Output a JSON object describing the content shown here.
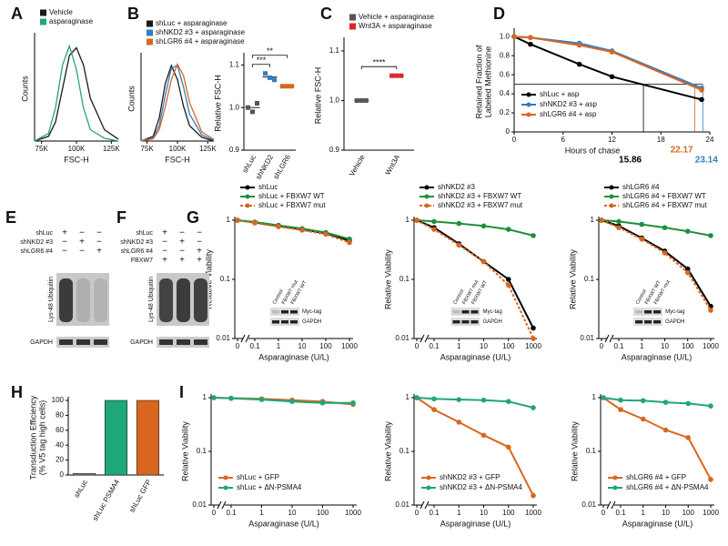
{
  "chart_data": [
    {
      "panel": "A",
      "type": "line",
      "xlabel": "FSC-H",
      "ylabel": "Counts",
      "legend": "above",
      "markers": false,
      "x": [
        70000,
        80000,
        85000,
        90000,
        95000,
        100000,
        105000,
        110000,
        120000,
        130000
      ],
      "xlim": [
        70000,
        130000
      ],
      "xticks": [
        {
          "value": 75000,
          "label": "75K"
        },
        {
          "value": 100000,
          "label": "100K"
        },
        {
          "value": 125000,
          "label": "125K"
        }
      ],
      "ylim": [
        0,
        110
      ],
      "series": [
        {
          "name": "Vehicle",
          "color": "#1a1a1a",
          "values": [
            0,
            5,
            20,
            55,
            90,
            98,
            80,
            45,
            12,
            2
          ]
        },
        {
          "name": "asparaginase",
          "color": "#1fa67a",
          "values": [
            0,
            8,
            35,
            80,
            100,
            75,
            35,
            12,
            3,
            0
          ]
        }
      ]
    },
    {
      "panel": "B",
      "type": "line",
      "xlabel": "FSC-H",
      "ylabel": "Counts",
      "legend": "above",
      "markers": false,
      "x": [
        70000,
        80000,
        85000,
        90000,
        95000,
        100000,
        105000,
        110000,
        120000,
        130000
      ],
      "xlim": [
        70000,
        130000
      ],
      "xticks": [
        {
          "value": 75000,
          "label": "75K"
        },
        {
          "value": 100000,
          "label": "100K"
        },
        {
          "value": 125000,
          "label": "125K"
        }
      ],
      "ylim": [
        0,
        110
      ],
      "series": [
        {
          "name": "shLuc + asparaginase",
          "color": "#1a1a1a",
          "values": [
            0,
            6,
            30,
            75,
            98,
            80,
            45,
            20,
            5,
            0
          ]
        },
        {
          "name": "shNKD2 #3 + asparaginase",
          "color": "#2f7fc1",
          "values": [
            0,
            4,
            20,
            60,
            95,
            98,
            70,
            35,
            8,
            1
          ]
        },
        {
          "name": "shLGR6 #4 + asparaginase",
          "color": "#d9661f",
          "values": [
            0,
            3,
            15,
            45,
            80,
            100,
            85,
            50,
            12,
            2
          ]
        }
      ]
    },
    {
      "type": "dot",
      "ylabel": "Relative FSC-H",
      "categories": [
        "shLuc",
        "shNKD2",
        "shLGR6"
      ],
      "colors": [
        "#555555",
        "#2f7fc1",
        "#d9661f"
      ],
      "values": [
        [
          1.0,
          0.99,
          1.01
        ],
        [
          1.08,
          1.07,
          1.065
        ],
        [
          1.05,
          1.05,
          1.05
        ]
      ],
      "ylim": [
        0.9,
        1.12
      ],
      "yticks": [
        0.9,
        {
          "value": 1,
          "label": "1.0"
        },
        1.1
      ],
      "significance": [
        {
          "pair": [
            0,
            1
          ],
          "label": "***"
        },
        {
          "pair": [
            0,
            2
          ],
          "label": "**"
        }
      ]
    },
    {
      "panel": "C",
      "type": "dot",
      "ylabel": "Relative FSC-H",
      "legend": "above",
      "categories": [
        "Vehicle",
        "Wnt3A"
      ],
      "colors": [
        "#555555",
        "#e0262b"
      ],
      "names": [
        "Vehicle + asparaginase",
        "Wnt3A + asparaginase"
      ],
      "values": [
        [
          1.0,
          1.0,
          1.0
        ],
        [
          1.05,
          1.05,
          1.05
        ]
      ],
      "ylim": [
        0.9,
        1.12
      ],
      "yticks": [
        0.9,
        {
          "value": 1,
          "label": "1.0"
        },
        1.1
      ],
      "significance": [
        {
          "pair": [
            0,
            1
          ],
          "label": "****"
        }
      ]
    },
    {
      "panel": "D",
      "type": "line",
      "xlabel": "Hours of chase",
      "ylabel": [
        "Retained Fraction of",
        "Labeled Methionine"
      ],
      "legend": "lower left",
      "markers": true,
      "x": [
        0,
        2,
        8,
        12,
        23
      ],
      "xlim": [
        0,
        24
      ],
      "xticks": [
        0,
        6,
        12,
        18,
        24
      ],
      "ylim": [
        0,
        1.05
      ],
      "yticks": [
        0,
        0.2,
        0.4,
        0.6,
        0.8,
        {
          "value": 1,
          "label": "1.0"
        }
      ],
      "threshold": 0.5,
      "crossings": [
        {
          "value": 15.86,
          "color": "#000000"
        },
        {
          "value": 22.17,
          "color": "#d9661f"
        },
        {
          "value": 23.14,
          "color": "#2f7fc1"
        }
      ],
      "series": [
        {
          "name": "shLuc + asp",
          "color": "#000000",
          "values": [
            1.0,
            0.92,
            0.71,
            0.58,
            0.34
          ]
        },
        {
          "name": "shNKD2 #3 + asp",
          "color": "#2f7fc1",
          "values": [
            1.0,
            0.99,
            0.93,
            0.85,
            0.46
          ]
        },
        {
          "name": "shLGR6 #4 + asp",
          "color": "#d9661f",
          "values": [
            1.0,
            0.99,
            0.91,
            0.84,
            0.44
          ]
        }
      ]
    },
    {
      "panel": "G",
      "type": "line",
      "xscale": "log",
      "yscale": "log",
      "xlabel": "Asparaginase (U/L)",
      "ylabel": "Relative Viability",
      "legend": "above",
      "markers": true,
      "x": [
        0,
        0.1,
        1,
        10,
        100,
        1000
      ],
      "xlim": [
        0,
        1000
      ],
      "xticks": [
        0,
        0.1,
        1,
        10,
        100,
        1000
      ],
      "ylim": [
        0.01,
        1
      ],
      "yticks": [
        0.01,
        0.1,
        1
      ],
      "inset": {
        "lanes": [
          "Control",
          "FBXW7 mut",
          "FBXW7 WT"
        ],
        "bands": [
          "Myc-tag",
          "GAPDH"
        ]
      },
      "series": [
        {
          "name": "shLuc",
          "color": "#000000",
          "values": [
            1,
            0.92,
            0.8,
            0.7,
            0.6,
            0.45
          ]
        },
        {
          "name": "shLuc + FBXW7 WT",
          "color": "#1f8f3a",
          "values": [
            1,
            0.93,
            0.82,
            0.72,
            0.62,
            0.48
          ]
        },
        {
          "name": "shLuc + FBXW7 mut",
          "color": "#d9661f",
          "dash": true,
          "values": [
            1,
            0.9,
            0.78,
            0.68,
            0.58,
            0.42
          ]
        }
      ]
    },
    {
      "type": "line",
      "xscale": "log",
      "yscale": "log",
      "xlabel": "Asparaginase (U/L)",
      "ylabel": "Relative Viability",
      "legend": "above",
      "markers": true,
      "x": [
        0,
        0.1,
        1,
        10,
        100,
        1000
      ],
      "xlim": [
        0,
        1000
      ],
      "xticks": [
        0,
        0.1,
        1,
        10,
        100,
        1000
      ],
      "ylim": [
        0.01,
        1
      ],
      "yticks": [
        0.01,
        0.1,
        1
      ],
      "inset": {
        "lanes": [
          "Control",
          "FBXW7 mut",
          "FBXW7 WT"
        ],
        "bands": [
          "Myc-tag",
          "GAPDH"
        ]
      },
      "series": [
        {
          "name": "shNKD2 #3",
          "color": "#000000",
          "values": [
            1,
            0.75,
            0.4,
            0.2,
            0.1,
            0.015
          ]
        },
        {
          "name": "shNKD2 #3 + FBXW7 WT",
          "color": "#1f8f3a",
          "values": [
            1,
            0.95,
            0.88,
            0.8,
            0.7,
            0.55
          ]
        },
        {
          "name": "shNKD2 #3 + FBXW7 mut",
          "color": "#d9661f",
          "dash": true,
          "values": [
            1,
            0.7,
            0.38,
            0.2,
            0.08,
            0.01
          ]
        }
      ]
    },
    {
      "type": "line",
      "xscale": "log",
      "yscale": "log",
      "xlabel": "Asparaginase (U/L)",
      "ylabel": "Relative Viability",
      "legend": "above",
      "markers": true,
      "x": [
        0,
        0.1,
        1,
        10,
        100,
        1000
      ],
      "xlim": [
        0,
        1000
      ],
      "xticks": [
        0,
        0.1,
        1,
        10,
        100,
        1000
      ],
      "ylim": [
        0.01,
        1
      ],
      "yticks": [
        0.01,
        0.1,
        1
      ],
      "inset": {
        "lanes": [
          "Control",
          "FBXW7 WT",
          "FBXW7 mut"
        ],
        "bands": [
          "Myc-tag",
          "GAPDH"
        ]
      },
      "series": [
        {
          "name": "shLGR6 #4",
          "color": "#000000",
          "values": [
            1,
            0.8,
            0.5,
            0.3,
            0.15,
            0.035
          ]
        },
        {
          "name": "shLGR6 #4 + FBXW7 WT",
          "color": "#1f8f3a",
          "values": [
            1,
            0.95,
            0.85,
            0.75,
            0.65,
            0.55
          ]
        },
        {
          "name": "shLGR6 #4 + FBXW7 mut",
          "color": "#d9661f",
          "dash": true,
          "values": [
            1,
            0.75,
            0.48,
            0.28,
            0.13,
            0.03
          ]
        }
      ]
    },
    {
      "panel": "H",
      "type": "bar",
      "ylabel": [
        "Transduction Efficiency",
        "(% V5 tag high cells)"
      ],
      "categories": [
        "shLuc",
        "shLuc PSMA4",
        "shLuc GFP"
      ],
      "values": [
        2,
        100,
        100
      ],
      "colors": [
        "#888888",
        "#1fa67a",
        "#d9661f"
      ],
      "ylim": [
        0,
        100
      ],
      "yticks": [
        0,
        20,
        40,
        60,
        80,
        100
      ]
    },
    {
      "panel": "I",
      "type": "line",
      "xscale": "log",
      "yscale": "log",
      "xlabel": "Asparaginase (U/L)",
      "ylabel": "Relative Viability",
      "legend": "lower left",
      "markers": true,
      "x": [
        0,
        0.1,
        1,
        10,
        100,
        1000
      ],
      "xlim": [
        0,
        1000
      ],
      "xticks": [
        0,
        0.1,
        1,
        10,
        100,
        1000
      ],
      "ylim": [
        0.01,
        1
      ],
      "yticks": [
        0.01,
        0.1,
        1
      ],
      "series": [
        {
          "name": "shLuc + GFP",
          "color": "#d9661f",
          "values": [
            1,
            0.98,
            0.95,
            0.9,
            0.85,
            0.75
          ]
        },
        {
          "name": "shLuc + ΔN-PSMA4",
          "color": "#1fa67a",
          "values": [
            1,
            0.97,
            0.92,
            0.85,
            0.8,
            0.8
          ]
        }
      ]
    },
    {
      "type": "line",
      "xscale": "log",
      "yscale": "log",
      "xlabel": "Asparaginase (U/L)",
      "ylabel": "Relative Viability",
      "legend": "lower left",
      "markers": true,
      "x": [
        0,
        0.1,
        1,
        10,
        100,
        1000
      ],
      "xlim": [
        0,
        1000
      ],
      "xticks": [
        0,
        0.1,
        1,
        10,
        100,
        1000
      ],
      "ylim": [
        0.01,
        1
      ],
      "yticks": [
        0.01,
        0.1,
        1
      ],
      "series": [
        {
          "name": "shNKD2 #3 + GFP",
          "color": "#d9661f",
          "values": [
            1,
            0.6,
            0.35,
            0.2,
            0.12,
            0.015
          ]
        },
        {
          "name": "shNKD2 #3 + ΔN-PSMA4",
          "color": "#1fa67a",
          "values": [
            1,
            0.95,
            0.92,
            0.9,
            0.85,
            0.65
          ]
        }
      ]
    },
    {
      "type": "line",
      "xscale": "log",
      "yscale": "log",
      "xlabel": "Asparaginase (U/L)",
      "ylabel": "Relative Viability",
      "legend": "lower left",
      "markers": true,
      "x": [
        0,
        0.1,
        1,
        10,
        100,
        1000
      ],
      "xlim": [
        0,
        1000
      ],
      "xticks": [
        0,
        0.1,
        1,
        10,
        100,
        1000
      ],
      "ylim": [
        0.01,
        1
      ],
      "yticks": [
        0.01,
        0.1,
        1
      ],
      "series": [
        {
          "name": "shLGR6 #4 + GFP",
          "color": "#d9661f",
          "values": [
            1,
            0.6,
            0.4,
            0.25,
            0.18,
            0.03
          ]
        },
        {
          "name": "shLGR6 #4 + ΔN-PSMA4",
          "color": "#1fa67a",
          "values": [
            1,
            0.9,
            0.88,
            0.82,
            0.78,
            0.7
          ]
        }
      ]
    }
  ],
  "blots": [
    {
      "panel": "E",
      "rows": [
        {
          "label": "shLuc",
          "signs": [
            "+",
            "−",
            "−"
          ]
        },
        {
          "label": "shNKD2 #3",
          "signs": [
            "−",
            "+",
            "−"
          ]
        },
        {
          "label": "shLGR6 #4",
          "signs": [
            "−",
            "−",
            "+"
          ]
        }
      ],
      "band": "Lys-48 Ubiquitin",
      "loading": "GAPDH"
    },
    {
      "panel": "F",
      "rows": [
        {
          "label": "shLuc",
          "signs": [
            "+",
            "−",
            "−"
          ]
        },
        {
          "label": "shNKD2 #3",
          "signs": [
            "−",
            "+",
            "−"
          ]
        },
        {
          "label": "shLGR6 #4",
          "signs": [
            "−",
            "−",
            "+"
          ]
        },
        {
          "label": "FBXW7",
          "signs": [
            "+",
            "+",
            "+"
          ]
        }
      ],
      "band": "Lys-48 Ubiquitin",
      "loading": "GAPDH"
    }
  ]
}
